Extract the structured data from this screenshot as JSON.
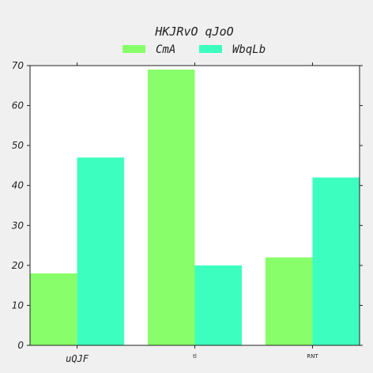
{
  "chart_data": {
    "type": "bar",
    "title": "HKJRvO qJoO",
    "xlabel": "",
    "ylabel": "",
    "categories": [
      "uQJF",
      "tl",
      "RNT"
    ],
    "series": [
      {
        "name": "CmA",
        "color": "#88ff6a",
        "values": [
          18,
          69,
          22
        ]
      },
      {
        "name": "WbqLb",
        "color": "#3cffbf",
        "values": [
          47,
          20,
          42
        ]
      }
    ],
    "ylim": [
      0,
      70
    ],
    "yticks": [
      "0",
      "10",
      "20",
      "30",
      "40",
      "50",
      "60",
      "70"
    ],
    "grid": false,
    "legend_position": "top-center"
  }
}
